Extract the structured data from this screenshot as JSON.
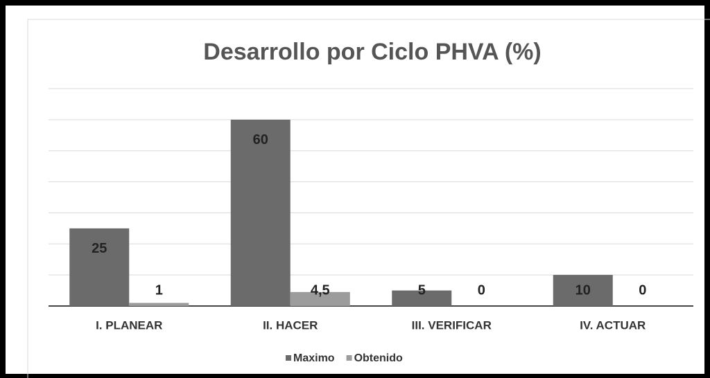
{
  "chart_data": {
    "type": "bar",
    "title": "Desarrollo por Ciclo PHVA (%)",
    "categories": [
      "I. PLANEAR",
      "II. HACER",
      "III. VERIFICAR",
      "IV. ACTUAR"
    ],
    "series": [
      {
        "name": "Maximo",
        "color": "#6b6b6b",
        "values": [
          25,
          60,
          5,
          10
        ]
      },
      {
        "name": "Obtenido",
        "color": "#9c9c9c",
        "values": [
          1,
          4.5,
          0,
          0
        ],
        "value_labels": [
          "1",
          "4,5",
          "0",
          "0"
        ]
      }
    ],
    "ylim": [
      0,
      70
    ],
    "yticks": [
      0,
      10,
      20,
      30,
      40,
      50,
      60,
      70
    ],
    "grid": true
  }
}
